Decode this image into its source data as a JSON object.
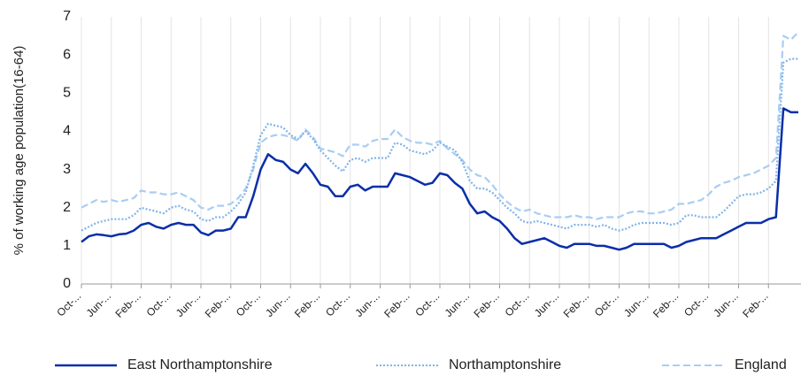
{
  "chart_data": {
    "type": "line",
    "ylabel": "% of working age population(16-64)",
    "ylim": [
      0,
      7
    ],
    "yticks": [
      0,
      1,
      2,
      3,
      4,
      5,
      6,
      7
    ],
    "grid": true,
    "legend": "bottom",
    "categories": [
      "Oct-...",
      null,
      null,
      null,
      "Jun-...",
      null,
      null,
      null,
      "Feb-...",
      null,
      null,
      null,
      "Oct-...",
      null,
      null,
      null,
      "Jun-...",
      null,
      null,
      null,
      "Feb-...",
      null,
      null,
      null,
      "Oct-...",
      null,
      null,
      null,
      "Jun-...",
      null,
      null,
      null,
      "Feb-...",
      null,
      null,
      null,
      "Oct-...",
      null,
      null,
      null,
      "Jun-...",
      null,
      null,
      null,
      "Feb-...",
      null,
      null,
      null,
      "Oct-...",
      null,
      null,
      null,
      "Jun-...",
      null,
      null,
      null,
      "Feb-...",
      null,
      null,
      null,
      "Oct-...",
      null,
      null,
      null,
      "Jun-...",
      null,
      null,
      null,
      "Feb-...",
      null,
      null,
      null,
      "Oct-...",
      null,
      null,
      null,
      "Jun-...",
      null,
      null,
      null,
      "Feb-...",
      null,
      null,
      null,
      "Oct-...",
      null,
      null,
      null,
      "Jun-...",
      null,
      null,
      null,
      "Feb-...",
      null,
      null,
      null,
      null
    ],
    "series": [
      {
        "name": "East Northamptonshire",
        "color": "#0a2ea8",
        "style": "solid",
        "values": [
          1.1,
          1.25,
          1.3,
          1.28,
          1.25,
          1.3,
          1.32,
          1.4,
          1.55,
          1.6,
          1.5,
          1.45,
          1.55,
          1.6,
          1.55,
          1.55,
          1.35,
          1.28,
          1.4,
          1.4,
          1.45,
          1.75,
          1.75,
          2.3,
          3.0,
          3.4,
          3.25,
          3.2,
          3.0,
          2.9,
          3.15,
          2.9,
          2.6,
          2.55,
          2.3,
          2.3,
          2.55,
          2.6,
          2.45,
          2.55,
          2.55,
          2.55,
          2.9,
          2.85,
          2.8,
          2.7,
          2.6,
          2.65,
          2.9,
          2.85,
          2.65,
          2.5,
          2.1,
          1.85,
          1.9,
          1.75,
          1.65,
          1.45,
          1.2,
          1.05,
          1.1,
          1.15,
          1.2,
          1.1,
          1.0,
          0.95,
          1.05,
          1.05,
          1.05,
          1.0,
          1.0,
          0.95,
          0.9,
          0.95,
          1.05,
          1.05,
          1.05,
          1.05,
          1.05,
          0.95,
          1.0,
          1.1,
          1.15,
          1.2,
          1.2,
          1.2,
          1.3,
          1.4,
          1.5,
          1.6,
          1.6,
          1.6,
          1.7,
          1.75,
          4.6,
          4.5,
          4.5
        ]
      },
      {
        "name": "Northamptonshire",
        "color": "#7fb3ea",
        "style": "dotted",
        "values": [
          1.4,
          1.5,
          1.6,
          1.65,
          1.7,
          1.7,
          1.7,
          1.8,
          2.0,
          1.95,
          1.9,
          1.85,
          2.0,
          2.05,
          1.95,
          1.9,
          1.7,
          1.65,
          1.75,
          1.75,
          1.9,
          2.1,
          2.4,
          3.1,
          3.9,
          4.2,
          4.15,
          4.1,
          3.9,
          3.8,
          4.0,
          3.8,
          3.5,
          3.3,
          3.1,
          2.95,
          3.25,
          3.3,
          3.2,
          3.3,
          3.3,
          3.3,
          3.7,
          3.65,
          3.5,
          3.45,
          3.4,
          3.5,
          3.7,
          3.6,
          3.5,
          3.2,
          2.7,
          2.5,
          2.5,
          2.4,
          2.2,
          2.0,
          1.85,
          1.65,
          1.6,
          1.65,
          1.6,
          1.55,
          1.5,
          1.45,
          1.55,
          1.55,
          1.55,
          1.5,
          1.55,
          1.45,
          1.4,
          1.45,
          1.55,
          1.6,
          1.6,
          1.6,
          1.6,
          1.55,
          1.6,
          1.8,
          1.8,
          1.75,
          1.75,
          1.75,
          1.9,
          2.1,
          2.3,
          2.35,
          2.35,
          2.4,
          2.5,
          2.7,
          5.8,
          5.9,
          5.9
        ]
      },
      {
        "name": "England",
        "color": "#a9cdf2",
        "style": "dashed",
        "values": [
          2.0,
          2.1,
          2.2,
          2.15,
          2.2,
          2.15,
          2.2,
          2.25,
          2.45,
          2.4,
          2.4,
          2.35,
          2.35,
          2.4,
          2.3,
          2.2,
          2.0,
          1.95,
          2.05,
          2.05,
          2.1,
          2.25,
          2.5,
          3.0,
          3.7,
          3.85,
          3.9,
          3.9,
          3.85,
          3.75,
          4.05,
          3.85,
          3.55,
          3.5,
          3.45,
          3.35,
          3.65,
          3.65,
          3.6,
          3.75,
          3.8,
          3.8,
          4.05,
          3.85,
          3.75,
          3.7,
          3.7,
          3.65,
          3.75,
          3.55,
          3.4,
          3.25,
          3.0,
          2.85,
          2.8,
          2.6,
          2.35,
          2.15,
          2.0,
          1.9,
          1.95,
          1.85,
          1.8,
          1.75,
          1.75,
          1.75,
          1.8,
          1.75,
          1.75,
          1.7,
          1.75,
          1.75,
          1.75,
          1.85,
          1.9,
          1.9,
          1.85,
          1.85,
          1.9,
          1.95,
          2.1,
          2.1,
          2.15,
          2.2,
          2.35,
          2.55,
          2.65,
          2.7,
          2.8,
          2.85,
          2.9,
          3.0,
          3.1,
          3.3,
          6.5,
          6.4,
          6.6
        ]
      }
    ]
  }
}
